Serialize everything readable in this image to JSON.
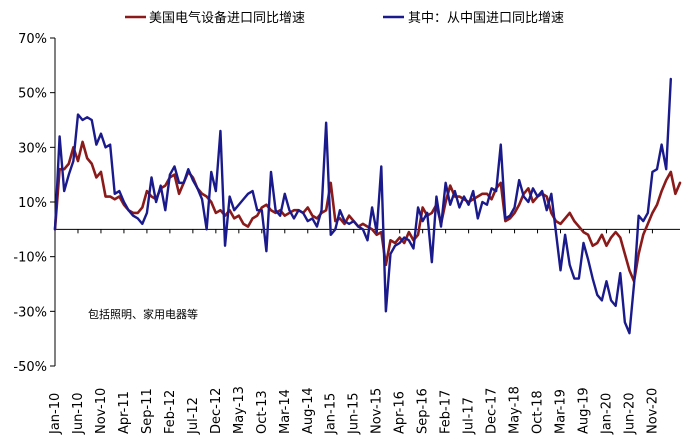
{
  "chart_data": {
    "type": "line",
    "title": "",
    "xlabel": "",
    "ylabel": "",
    "ylim": [
      -50,
      70
    ],
    "yticks": [
      70,
      50,
      30,
      10,
      -10,
      -30,
      -50
    ],
    "ytick_labels": [
      "70%",
      "50%",
      "30%",
      "10%",
      "-10%",
      "-30%",
      "-50%"
    ],
    "grid": false,
    "legend_position": "top",
    "annotation": "包括照明、家用电器等",
    "x_tick_labels": [
      "Jan-10",
      "Jun-10",
      "Nov-10",
      "Apr-11",
      "Sep-11",
      "Feb-12",
      "Jul-12",
      "Dec-12",
      "May-13",
      "Oct-13",
      "Mar-14",
      "Aug-14",
      "Jan-15",
      "Jun-15",
      "Nov-15",
      "Apr-16",
      "Sep-16",
      "Feb-17",
      "Jul-17",
      "Dec-17",
      "May-18",
      "Oct-18",
      "Mar-19",
      "Aug-19",
      "Jan-20",
      "Jun-20",
      "Nov-20"
    ],
    "x_start": "2010-01",
    "x_end": "2021-01",
    "series": [
      {
        "name": "美国电气设备进口同比增速",
        "color": "#8B1A1A",
        "values": [
          0,
          22,
          22,
          24,
          30,
          25,
          32,
          26,
          24,
          19,
          21,
          12,
          12,
          11,
          12,
          9,
          7,
          6,
          6,
          8,
          14,
          12,
          11,
          15,
          16,
          19,
          20,
          13,
          17,
          21,
          19,
          15,
          13,
          12,
          10,
          6,
          7,
          5,
          7,
          4,
          5,
          2,
          1,
          4,
          5,
          8,
          9,
          7,
          6,
          7,
          5,
          6,
          7,
          7,
          6,
          8,
          5,
          4,
          6,
          7,
          17,
          3,
          4,
          2,
          5,
          3,
          1,
          2,
          1,
          0,
          -2,
          -1,
          -13,
          -4,
          -5,
          -3,
          -5,
          -1,
          -4,
          -2,
          8,
          5,
          6,
          9,
          2,
          10,
          16,
          12,
          12,
          11,
          10,
          11,
          12,
          13,
          13,
          11,
          15,
          17,
          3,
          4,
          6,
          9,
          13,
          15,
          10,
          12,
          13,
          12,
          6,
          3,
          2,
          4,
          6,
          3,
          1,
          -1,
          -2,
          -6,
          -5,
          -2,
          -6,
          -3,
          -1,
          -3,
          -9,
          -15,
          -19,
          -9,
          -2,
          2,
          6,
          9,
          14,
          18,
          21,
          13,
          17
        ]
      },
      {
        "name": "其中：从中国进口同比增速",
        "color": "#1A1A8C",
        "values": [
          0,
          34,
          14,
          20,
          25,
          42,
          40,
          41,
          40,
          31,
          35,
          30,
          31,
          13,
          14,
          10,
          7,
          5,
          4,
          2,
          6,
          19,
          10,
          16,
          7,
          20,
          23,
          17,
          17,
          22,
          18,
          15,
          11,
          0,
          21,
          14,
          36,
          -6,
          12,
          7,
          9,
          11,
          13,
          14,
          7,
          7,
          -8,
          21,
          7,
          5,
          13,
          7,
          4,
          7,
          6,
          3,
          4,
          1,
          7,
          39,
          -2,
          0,
          7,
          3,
          2,
          3,
          1,
          0,
          -4,
          8,
          -1,
          23,
          -30,
          -9,
          -6,
          -5,
          -3,
          -4,
          -7,
          8,
          3,
          6,
          -12,
          12,
          1,
          17,
          9,
          14,
          8,
          12,
          9,
          14,
          4,
          10,
          9,
          15,
          14,
          31,
          4,
          5,
          8,
          18,
          12,
          10,
          15,
          12,
          14,
          7,
          13,
          -1,
          -15,
          -2,
          -13,
          -18,
          -18,
          -5,
          -11,
          -18,
          -24,
          -26,
          -19,
          -26,
          -28,
          -16,
          -34,
          -38,
          -20,
          5,
          3,
          6,
          21,
          22,
          31,
          22,
          55
        ]
      }
    ]
  }
}
